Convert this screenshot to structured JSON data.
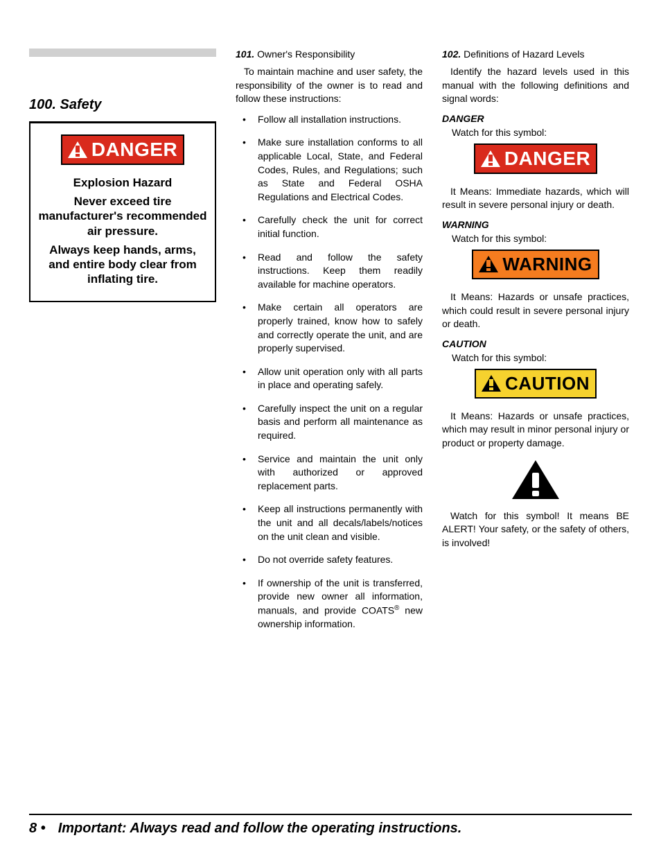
{
  "colors": {
    "danger_bg": "#d92a1c",
    "warning_bg": "#f57c1f",
    "caution_bg": "#f6d22e",
    "text": "#000000",
    "page_bg": "#ffffff",
    "gray_bar": "#d0d0d0"
  },
  "col1": {
    "section_title": "100. Safety",
    "danger_badge": "DANGER",
    "explosion_title": "Explosion Hazard",
    "line1": "Never exceed tire manufacturer's recommended air pressure.",
    "line2": "Always keep hands, arms, and entire body clear from inflating tire."
  },
  "col2": {
    "heading_num": "101.",
    "heading_text": "Owner's Responsibility",
    "intro": "To maintain machine and user safety, the responsibility of the owner is to read and follow these instructions:",
    "bullets": [
      "Follow all installation instructions.",
      "Make sure installation conforms to all applicable Local, State, and Federal Codes, Rules, and Regulations; such as State and Federal OSHA Regulations and Electrical Codes.",
      "Carefully check the unit for correct initial function.",
      "Read and follow the safety instructions. Keep them readily available for machine operators.",
      "Make certain all operators are properly trained, know how to safely and correctly operate the unit, and are properly supervised.",
      "Allow unit operation only with all parts in place and operating safely.",
      "Carefully inspect the unit on a regular basis and perform all maintenance as required.",
      "Service and maintain the unit only with authorized or approved replacement parts.",
      "Keep all instructions permanently with the unit and all decals/labels/notices on the unit clean and visible.",
      "Do not override safety features.",
      "If ownership of the unit is transferred, provide new owner all information, manuals, and provide COATS® new ownership information."
    ]
  },
  "col3": {
    "heading_num": "102.",
    "heading_text": "Definitions of Hazard Levels",
    "intro": "Identify the hazard levels used in this manual with the following definitions and signal words:",
    "danger": {
      "label": "DANGER",
      "watch": "Watch for this symbol:",
      "badge": "DANGER",
      "meaning": "It Means: Immediate hazards, which will result in severe personal injury or death."
    },
    "warning": {
      "label": "WARNING",
      "watch": "Watch for this symbol:",
      "badge": "WARNING",
      "meaning": "It Means: Hazards or unsafe practices, which could result in severe personal injury or death."
    },
    "caution": {
      "label": "CAUTION",
      "watch": "Watch for this symbol:",
      "badge": "CAUTION",
      "meaning": "It Means: Hazards or unsafe practices, which may result in minor personal injury or product or property damage."
    },
    "alert_text": "Watch for this symbol! It means BE ALERT! Your safety, or the safety of others, is involved!"
  },
  "footer": {
    "page": "8 •",
    "message": "Important: Always read and follow the operating instructions."
  }
}
